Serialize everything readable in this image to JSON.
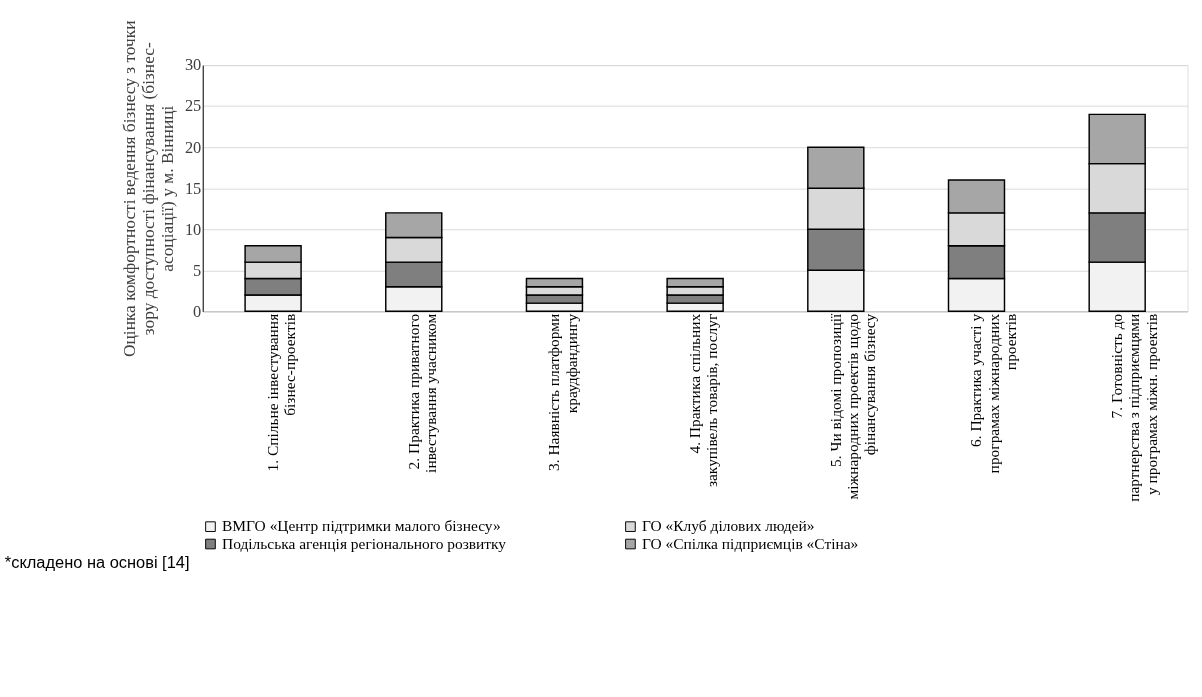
{
  "chart_data": {
    "type": "bar",
    "stacked": true,
    "ylabel": "Оцінка комфортності ведення бізнесу з точки зору доступності фінансування (бізнес-асоціації) у м. Вінниці",
    "categories": [
      "1. Спільне інвестування бізнес-проектів",
      "2.  Практика приватного інвестування учасником",
      "3. Наявність платформи краудфандингу",
      "4. Практика спільних закупівель товарів, послуг",
      "5. Чи відомі пропозиції міжнародних проектів щодо фінансування бізнесу",
      "6. Практика участі у програмах міжнародних проектів",
      "7. Готовність до партнерства з підприємцями у програмах міжн. проектів"
    ],
    "series": [
      {
        "name": "ВМГО «Центр підтримки малого бізнесу»",
        "color": "#f2f2f2",
        "values": [
          2,
          3,
          1,
          1,
          5,
          4,
          6
        ]
      },
      {
        "name": "Подільська агенція регіонального розвитку",
        "color": "#7f7f7f",
        "values": [
          2,
          3,
          1,
          1,
          5,
          4,
          6
        ]
      },
      {
        "name": "ГО «Клуб ділових людей»",
        "color": "#d9d9d9",
        "values": [
          2,
          3,
          1,
          1,
          5,
          4,
          6
        ]
      },
      {
        "name": "ГО «Спілка підприємців «Стіна»",
        "color": "#a6a6a6",
        "values": [
          2,
          3,
          1,
          1,
          5,
          4,
          6
        ]
      }
    ],
    "ylim": [
      0,
      30
    ],
    "yticks": [
      0,
      5,
      10,
      15,
      20,
      25,
      30
    ],
    "grid": "y",
    "legend": "bottom",
    "annotations": [
      "*складено на основі [14]"
    ]
  }
}
